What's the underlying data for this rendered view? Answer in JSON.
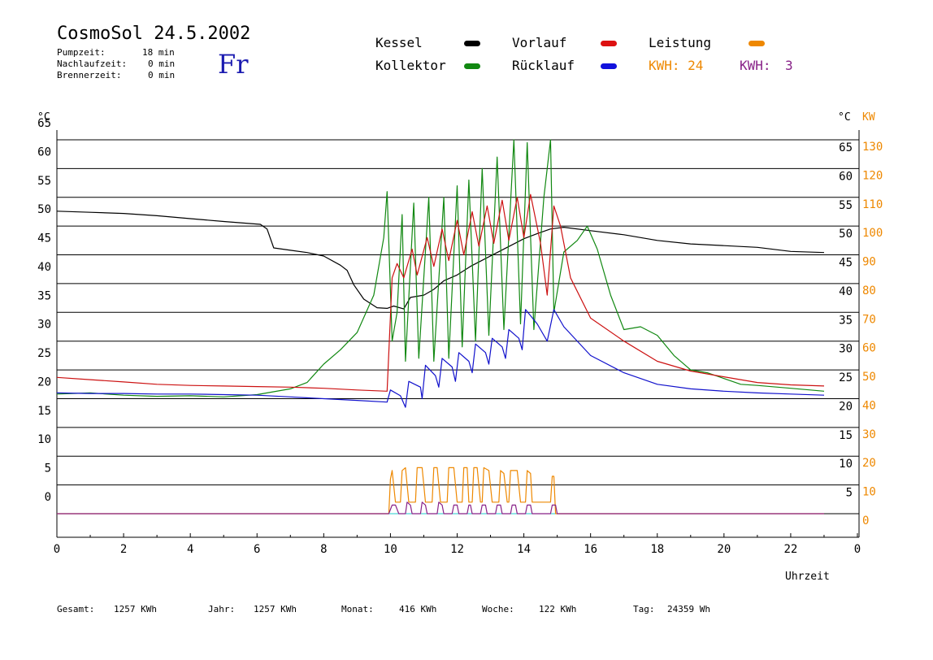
{
  "header": {
    "title": "CosmoSol 24.5.2002",
    "day": "Fr",
    "info_rows": [
      {
        "label": "Pumpzeit:",
        "value": "18 min"
      },
      {
        "label": "Nachlaufzeit:",
        "value": "0 min"
      },
      {
        "label": "Brennerzeit:",
        "value": "0 min"
      }
    ]
  },
  "legend": {
    "items": [
      {
        "label": "Kessel",
        "color": "#000000"
      },
      {
        "label": "Kollektor",
        "color": "#118811"
      },
      {
        "label": "Vorlauf",
        "color": "#dd1111"
      },
      {
        "label": "Rücklauf",
        "color": "#1111dd"
      },
      {
        "label": "Leistung",
        "color": "#ee8800"
      }
    ],
    "kwh_1": "KWH: 24",
    "kwh_2_label": "KWH:",
    "kwh_2_value": "3",
    "kwh_1_color": "#ee8800",
    "kwh_2_color": "#882288"
  },
  "footer": {
    "gesamt_label": "Gesamt:",
    "gesamt_value": "1257 KWh",
    "jahr_label": "Jahr:",
    "jahr_value": "1257 KWh",
    "monat_label": "Monat:",
    "monat_value": "416 KWh",
    "woche_label": "Woche:",
    "woche_value": "122 KWh",
    "tag_label": "Tag:",
    "tag_value": "24359 Wh"
  },
  "chart_data": {
    "type": "line",
    "xlabel": "Uhrzeit",
    "ylabel_left": "°C",
    "ylabel_right_1": "°C",
    "ylabel_right_2": "KW",
    "xlim": [
      0,
      24
    ],
    "ylim": [
      0,
      65
    ],
    "x_ticks": [
      "0",
      "2",
      "4",
      "6",
      "8",
      "10",
      "12",
      "14",
      "16",
      "18",
      "20",
      "22",
      "0"
    ],
    "y_ticks": [
      0,
      5,
      10,
      15,
      20,
      25,
      30,
      35,
      40,
      45,
      50,
      55,
      60,
      65
    ],
    "y_ticks_right": [
      "",
      "5",
      "10",
      "15",
      "20",
      "25",
      "30",
      "35",
      "40",
      "45",
      "50",
      "55",
      "60",
      "65"
    ],
    "y_ticks_kw": [
      "0",
      "10",
      "20",
      "30",
      "40",
      "50",
      "60",
      "70",
      "80",
      "90",
      "100",
      "110",
      "120",
      "130"
    ],
    "grid": true,
    "series": [
      {
        "name": "Kessel",
        "color": "#000000",
        "points": [
          [
            0,
            52.6
          ],
          [
            1,
            52.4
          ],
          [
            2,
            52.2
          ],
          [
            3,
            51.8
          ],
          [
            4,
            51.3
          ],
          [
            5,
            50.8
          ],
          [
            6.1,
            50.3
          ],
          [
            6.3,
            49.5
          ],
          [
            6.5,
            46.2
          ],
          [
            7,
            45.8
          ],
          [
            7.5,
            45.4
          ],
          [
            8,
            44.8
          ],
          [
            8.5,
            43.2
          ],
          [
            8.7,
            42.3
          ],
          [
            8.9,
            39.8
          ],
          [
            9.2,
            37.3
          ],
          [
            9.6,
            35.8
          ],
          [
            9.9,
            35.7
          ],
          [
            10.1,
            36.1
          ],
          [
            10.4,
            35.6
          ],
          [
            10.6,
            37.6
          ],
          [
            11,
            38.0
          ],
          [
            11.3,
            39.0
          ],
          [
            11.6,
            40.5
          ],
          [
            12,
            41.5
          ],
          [
            12.4,
            43.0
          ],
          [
            12.8,
            44.2
          ],
          [
            13.2,
            45.4
          ],
          [
            13.6,
            46.6
          ],
          [
            14,
            47.8
          ],
          [
            14.4,
            48.7
          ],
          [
            14.8,
            49.5
          ],
          [
            15.2,
            49.8
          ],
          [
            16,
            49.2
          ],
          [
            17,
            48.5
          ],
          [
            18,
            47.5
          ],
          [
            19,
            46.9
          ],
          [
            20,
            46.6
          ],
          [
            21,
            46.3
          ],
          [
            22,
            45.6
          ],
          [
            23,
            45.4
          ]
        ]
      },
      {
        "name": "Kollektor",
        "color": "#118811",
        "points": [
          [
            0,
            20.8
          ],
          [
            1,
            21.0
          ],
          [
            2,
            20.6
          ],
          [
            3,
            20.4
          ],
          [
            4,
            20.5
          ],
          [
            5,
            20.3
          ],
          [
            6,
            20.7
          ],
          [
            7,
            21.7
          ],
          [
            7.5,
            22.8
          ],
          [
            8,
            26.0
          ],
          [
            8.5,
            28.5
          ],
          [
            9,
            31.5
          ],
          [
            9.5,
            38.0
          ],
          [
            9.8,
            48.0
          ],
          [
            9.9,
            56.0
          ],
          [
            10.05,
            30.0
          ],
          [
            10.2,
            35.0
          ],
          [
            10.35,
            52.0
          ],
          [
            10.45,
            26.5
          ],
          [
            10.7,
            54.0
          ],
          [
            10.85,
            27.0
          ],
          [
            11.15,
            55.0
          ],
          [
            11.3,
            26.5
          ],
          [
            11.6,
            55.0
          ],
          [
            11.75,
            27.0
          ],
          [
            12.0,
            57.0
          ],
          [
            12.15,
            29.0
          ],
          [
            12.35,
            58.0
          ],
          [
            12.55,
            30.0
          ],
          [
            12.75,
            60.0
          ],
          [
            12.95,
            31.0
          ],
          [
            13.2,
            62.0
          ],
          [
            13.4,
            32.0
          ],
          [
            13.7,
            65.0
          ],
          [
            13.9,
            33.0
          ],
          [
            14.1,
            64.5
          ],
          [
            14.3,
            32.0
          ],
          [
            14.6,
            55.0
          ],
          [
            14.8,
            65.0
          ],
          [
            14.9,
            35.0
          ],
          [
            15.2,
            45.5
          ],
          [
            15.6,
            47.5
          ],
          [
            15.9,
            50.0
          ],
          [
            16.2,
            46.0
          ],
          [
            16.6,
            38.0
          ],
          [
            17,
            32.0
          ],
          [
            17.5,
            32.5
          ],
          [
            18,
            31.0
          ],
          [
            18.5,
            27.5
          ],
          [
            19,
            25.0
          ],
          [
            19.5,
            24.5
          ],
          [
            20,
            23.5
          ],
          [
            20.5,
            22.5
          ],
          [
            21,
            22.3
          ],
          [
            22,
            21.8
          ],
          [
            23,
            21.3
          ]
        ]
      },
      {
        "name": "Vorlauf",
        "color": "#cc1111",
        "points": [
          [
            0,
            23.7
          ],
          [
            1,
            23.3
          ],
          [
            2,
            22.9
          ],
          [
            3,
            22.5
          ],
          [
            4,
            22.3
          ],
          [
            5,
            22.2
          ],
          [
            6,
            22.1
          ],
          [
            7,
            22.0
          ],
          [
            8,
            21.8
          ],
          [
            9,
            21.5
          ],
          [
            9.9,
            21.3
          ],
          [
            10.05,
            41.0
          ],
          [
            10.2,
            43.5
          ],
          [
            10.4,
            41.0
          ],
          [
            10.65,
            46.0
          ],
          [
            10.8,
            41.5
          ],
          [
            11.1,
            48.0
          ],
          [
            11.3,
            43.0
          ],
          [
            11.55,
            49.5
          ],
          [
            11.75,
            44.0
          ],
          [
            12.0,
            51.0
          ],
          [
            12.2,
            45.0
          ],
          [
            12.45,
            52.5
          ],
          [
            12.65,
            46.5
          ],
          [
            12.9,
            53.5
          ],
          [
            13.1,
            47.0
          ],
          [
            13.35,
            54.5
          ],
          [
            13.55,
            47.5
          ],
          [
            13.8,
            55.0
          ],
          [
            14.0,
            48.0
          ],
          [
            14.2,
            55.5
          ],
          [
            14.5,
            47.0
          ],
          [
            14.7,
            38.0
          ],
          [
            14.9,
            53.5
          ],
          [
            15.1,
            50.0
          ],
          [
            15.4,
            41.0
          ],
          [
            16,
            34.0
          ],
          [
            17,
            30.0
          ],
          [
            18,
            26.5
          ],
          [
            19,
            24.8
          ],
          [
            20,
            23.8
          ],
          [
            21,
            22.8
          ],
          [
            22,
            22.4
          ],
          [
            23,
            22.2
          ]
        ]
      },
      {
        "name": "Rücklauf",
        "color": "#1111cc",
        "points": [
          [
            0,
            21.0
          ],
          [
            1,
            20.9
          ],
          [
            2,
            20.9
          ],
          [
            3,
            20.8
          ],
          [
            4,
            20.8
          ],
          [
            5,
            20.7
          ],
          [
            6,
            20.6
          ],
          [
            7,
            20.3
          ],
          [
            8,
            20.0
          ],
          [
            9,
            19.7
          ],
          [
            9.9,
            19.4
          ],
          [
            10.0,
            21.5
          ],
          [
            10.3,
            20.5
          ],
          [
            10.45,
            18.5
          ],
          [
            10.55,
            23.0
          ],
          [
            10.9,
            22.0
          ],
          [
            10.95,
            20.0
          ],
          [
            11.05,
            25.8
          ],
          [
            11.35,
            24.0
          ],
          [
            11.45,
            22.0
          ],
          [
            11.55,
            27.0
          ],
          [
            11.85,
            25.5
          ],
          [
            11.95,
            23.0
          ],
          [
            12.05,
            28.0
          ],
          [
            12.35,
            26.5
          ],
          [
            12.45,
            24.5
          ],
          [
            12.55,
            29.5
          ],
          [
            12.85,
            28.0
          ],
          [
            12.95,
            26.0
          ],
          [
            13.05,
            30.5
          ],
          [
            13.35,
            29.0
          ],
          [
            13.45,
            27.0
          ],
          [
            13.55,
            32.0
          ],
          [
            13.85,
            30.5
          ],
          [
            13.95,
            28.5
          ],
          [
            14.05,
            35.5
          ],
          [
            14.4,
            33.0
          ],
          [
            14.7,
            30.0
          ],
          [
            14.9,
            35.5
          ],
          [
            15.2,
            32.5
          ],
          [
            16,
            27.5
          ],
          [
            17,
            24.5
          ],
          [
            18,
            22.5
          ],
          [
            19,
            21.7
          ],
          [
            20,
            21.3
          ],
          [
            21,
            21.0
          ],
          [
            22,
            20.8
          ],
          [
            23,
            20.6
          ]
        ]
      },
      {
        "name": "Leistung",
        "color": "#ee8800",
        "unit": "KW",
        "points": [
          [
            0,
            0
          ],
          [
            9.95,
            0
          ],
          [
            10.0,
            12
          ],
          [
            10.05,
            15
          ],
          [
            10.15,
            4
          ],
          [
            10.3,
            4
          ],
          [
            10.35,
            15
          ],
          [
            10.45,
            16
          ],
          [
            10.55,
            4
          ],
          [
            10.75,
            4
          ],
          [
            10.8,
            16
          ],
          [
            10.95,
            16
          ],
          [
            11.05,
            4
          ],
          [
            11.25,
            4
          ],
          [
            11.3,
            16
          ],
          [
            11.4,
            16
          ],
          [
            11.5,
            4
          ],
          [
            11.7,
            4
          ],
          [
            11.75,
            16
          ],
          [
            11.9,
            16
          ],
          [
            12.0,
            4
          ],
          [
            12.15,
            4
          ],
          [
            12.2,
            16
          ],
          [
            12.3,
            16
          ],
          [
            12.35,
            4
          ],
          [
            12.45,
            4
          ],
          [
            12.5,
            16
          ],
          [
            12.6,
            16
          ],
          [
            12.7,
            4
          ],
          [
            12.75,
            4
          ],
          [
            12.8,
            16
          ],
          [
            12.95,
            15
          ],
          [
            13.05,
            4
          ],
          [
            13.25,
            4
          ],
          [
            13.3,
            15
          ],
          [
            13.4,
            14
          ],
          [
            13.5,
            4
          ],
          [
            13.55,
            4
          ],
          [
            13.6,
            15
          ],
          [
            13.8,
            15
          ],
          [
            13.9,
            4
          ],
          [
            14.05,
            4
          ],
          [
            14.1,
            15
          ],
          [
            14.2,
            14
          ],
          [
            14.25,
            4
          ],
          [
            14.8,
            4
          ],
          [
            14.85,
            13
          ],
          [
            14.9,
            13
          ],
          [
            14.95,
            0
          ],
          [
            23,
            0
          ]
        ]
      },
      {
        "name": "KWH",
        "color": "#882288",
        "unit": "KW",
        "points": [
          [
            0,
            0
          ],
          [
            9.95,
            0
          ],
          [
            10.05,
            3
          ],
          [
            10.15,
            3
          ],
          [
            10.25,
            0
          ],
          [
            10.45,
            0
          ],
          [
            10.5,
            4
          ],
          [
            10.6,
            3
          ],
          [
            10.65,
            0
          ],
          [
            10.9,
            0
          ],
          [
            10.95,
            4
          ],
          [
            11.05,
            3
          ],
          [
            11.1,
            0
          ],
          [
            11.4,
            0
          ],
          [
            11.45,
            4
          ],
          [
            11.55,
            3
          ],
          [
            11.6,
            0
          ],
          [
            11.85,
            0
          ],
          [
            11.9,
            3
          ],
          [
            12.0,
            3
          ],
          [
            12.05,
            0
          ],
          [
            12.3,
            0
          ],
          [
            12.35,
            3
          ],
          [
            12.4,
            3
          ],
          [
            12.45,
            0
          ],
          [
            12.7,
            0
          ],
          [
            12.75,
            3
          ],
          [
            12.85,
            3
          ],
          [
            12.9,
            0
          ],
          [
            13.15,
            0
          ],
          [
            13.2,
            3
          ],
          [
            13.3,
            3
          ],
          [
            13.35,
            0
          ],
          [
            13.6,
            0
          ],
          [
            13.65,
            3
          ],
          [
            13.75,
            3
          ],
          [
            13.8,
            0
          ],
          [
            14.05,
            0
          ],
          [
            14.1,
            3
          ],
          [
            14.2,
            3
          ],
          [
            14.25,
            0
          ],
          [
            14.8,
            0
          ],
          [
            14.85,
            3
          ],
          [
            14.95,
            3
          ],
          [
            15.0,
            0
          ],
          [
            23,
            0
          ]
        ]
      }
    ]
  }
}
